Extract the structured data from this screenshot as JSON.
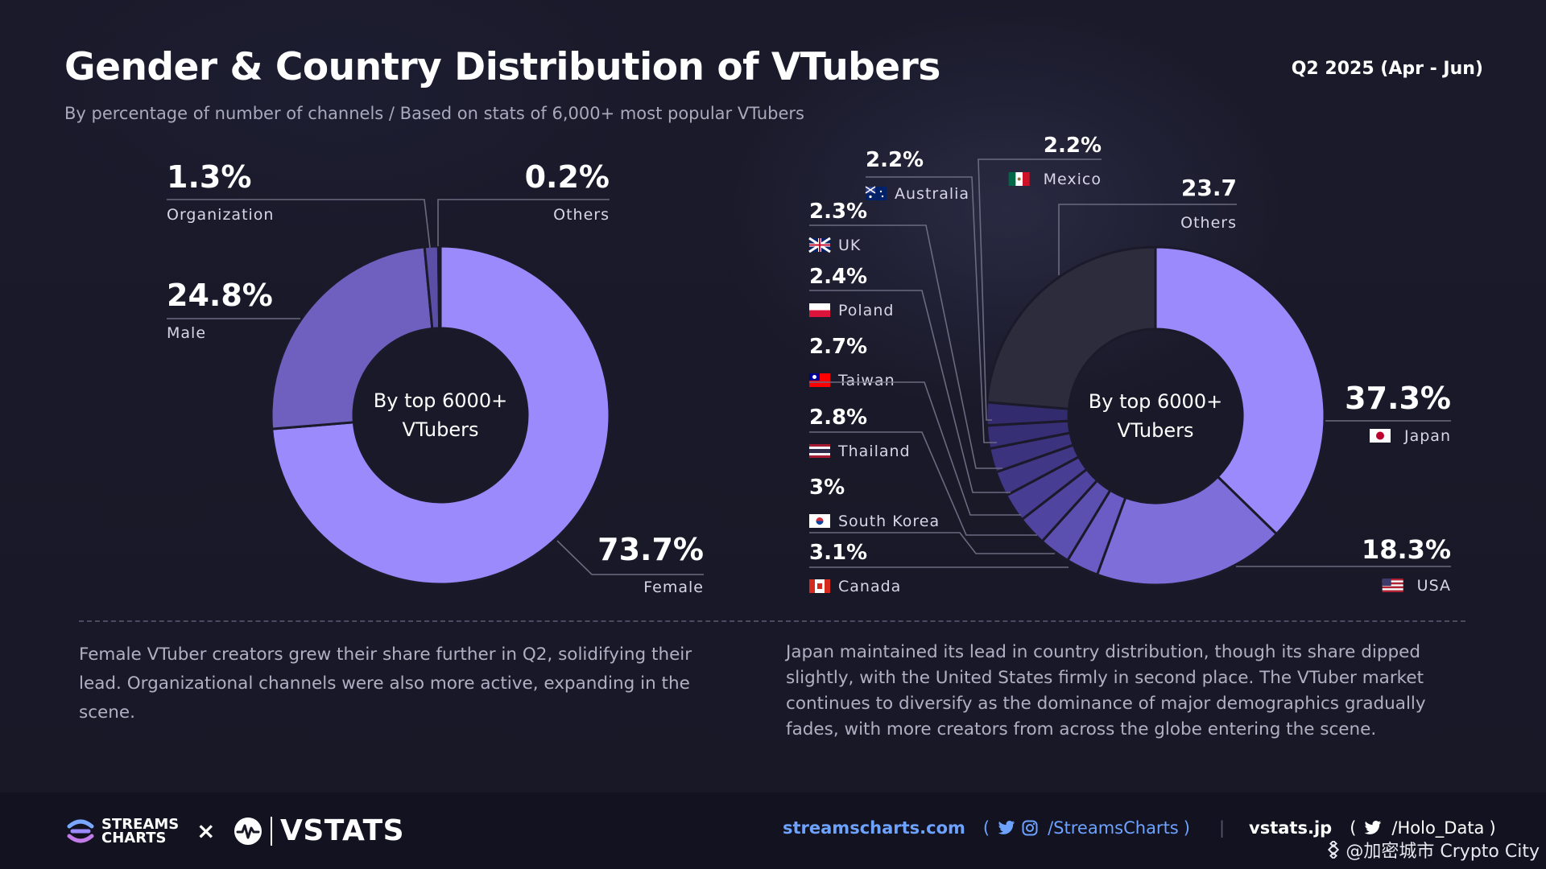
{
  "header": {
    "title": "Gender & Country Distribution of VTubers",
    "period": "Q2 2025 (Apr - Jun)",
    "subtitle": "By percentage of number of channels / Based on stats of 6,000+ most popular VTubers"
  },
  "chart_data": [
    {
      "type": "pie",
      "variant": "donut",
      "center_label": [
        "By top 6000+",
        "VTubers"
      ],
      "slices": [
        {
          "name": "Female",
          "value": 73.7,
          "display": "73.7%",
          "color": "#9b8afb"
        },
        {
          "name": "Male",
          "value": 24.8,
          "display": "24.8%",
          "color": "#6f5fbf"
        },
        {
          "name": "Organization",
          "value": 1.3,
          "display": "1.3%",
          "color": "#5a4ea6"
        },
        {
          "name": "Others",
          "value": 0.2,
          "display": "0.2%",
          "color": "#8877e0"
        }
      ]
    },
    {
      "type": "pie",
      "variant": "donut",
      "center_label": [
        "By top 6000+",
        "VTubers"
      ],
      "slices": [
        {
          "name": "Japan",
          "value": 37.3,
          "display": "37.3%",
          "color": "#9b8afb",
          "flag": "jp"
        },
        {
          "name": "USA",
          "value": 18.3,
          "display": "18.3%",
          "color": "#7d6ed9",
          "flag": "us"
        },
        {
          "name": "Canada",
          "value": 3.1,
          "display": "3.1%",
          "color": "#6a5cc4",
          "flag": "ca"
        },
        {
          "name": "South Korea",
          "value": 3,
          "display": "3%",
          "color": "#5b4fb0",
          "flag": "kr"
        },
        {
          "name": "Thailand",
          "value": 2.8,
          "display": "2.8%",
          "color": "#4f449f",
          "flag": "th"
        },
        {
          "name": "Taiwan",
          "value": 2.7,
          "display": "2.7%",
          "color": "#473d92",
          "flag": "tw"
        },
        {
          "name": "Poland",
          "value": 2.4,
          "display": "2.4%",
          "color": "#403787",
          "flag": "pl"
        },
        {
          "name": "UK",
          "value": 2.3,
          "display": "2.3%",
          "color": "#3b337e",
          "flag": "gb"
        },
        {
          "name": "Australia",
          "value": 2.2,
          "display": "2.2%",
          "color": "#362f76",
          "flag": "au"
        },
        {
          "name": "Mexico",
          "value": 2.2,
          "display": "2.2%",
          "color": "#322c6e",
          "flag": "mx"
        },
        {
          "name": "Others",
          "value": 23.7,
          "display": "23.7",
          "color": "#2c2c3c"
        }
      ]
    }
  ],
  "notes": {
    "left": "Female VTuber creators grew their share further in Q2, solidifying their lead. Organizational channels were also more active, expanding in the scene.",
    "right": "Japan maintained its lead in country distribution, though its share dipped slightly, with the United States firmly in second place. The VTuber market continues to diversify as the dominance of major demographics gradually fades, with more creators from across the globe entering the scene."
  },
  "footer": {
    "brand_left_line1": "STREAMS",
    "brand_left_line2": "CHARTS",
    "times": "×",
    "brand_right": "VSTATS",
    "site_a": "streamscharts.com",
    "paren_open": "(",
    "paren_close": ")",
    "handle_a": "/StreamsCharts",
    "separator": "|",
    "site_b": "vstats.jp",
    "handle_b": "/Holo_Data",
    "watermark": "@加密城市 Crypto City",
    "icons": [
      "streamscharts-logo-icon",
      "vstats-logo-icon",
      "twitter-icon",
      "instagram-icon",
      "binance-icon"
    ]
  }
}
